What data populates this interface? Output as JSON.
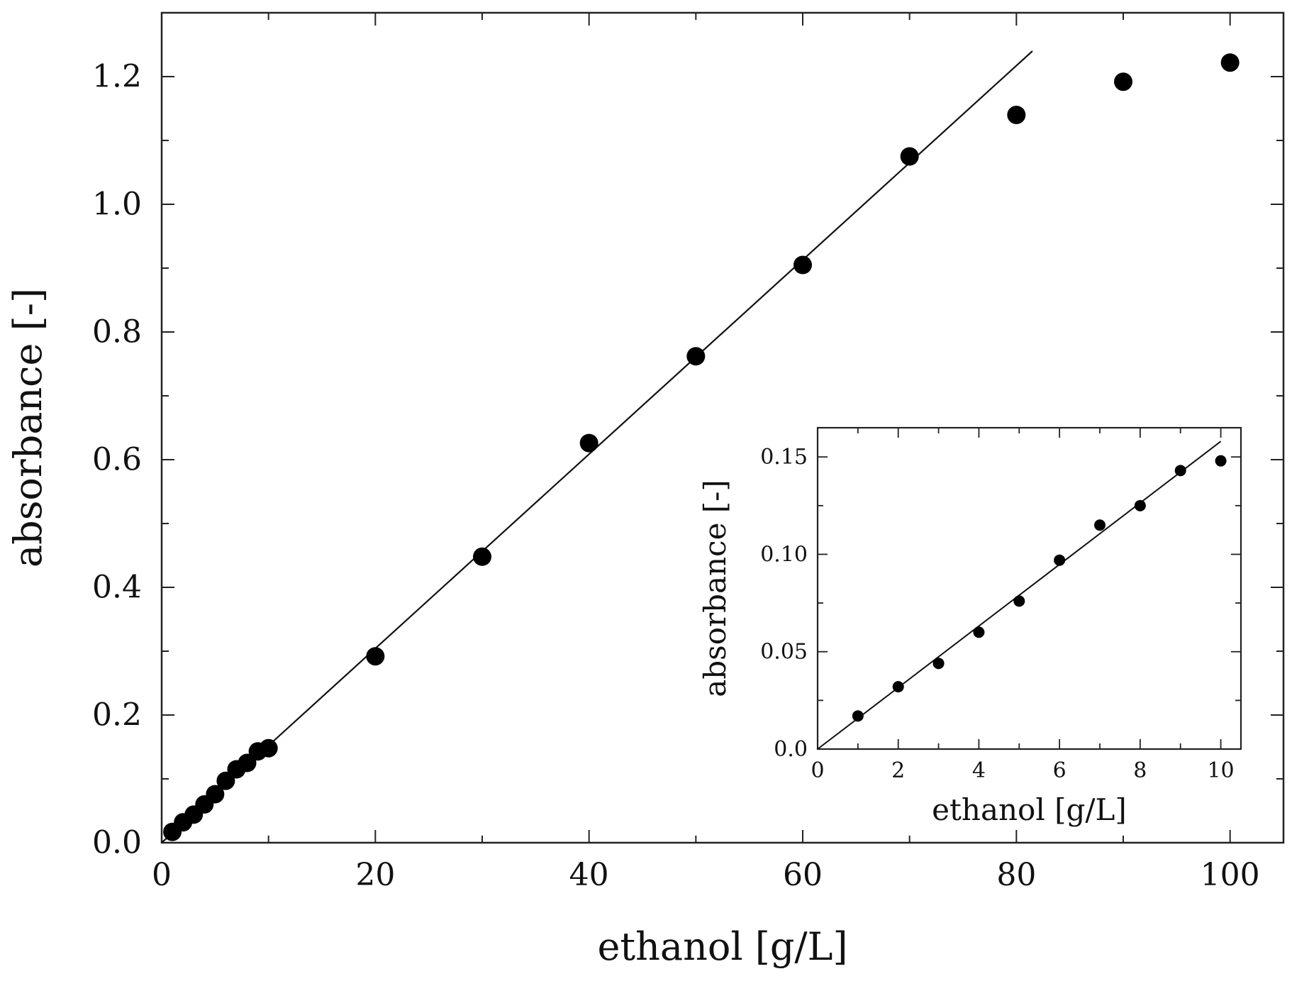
{
  "chart_data": [
    {
      "id": "main",
      "type": "scatter",
      "xlabel": "ethanol [g/L]",
      "ylabel": "absorbance [-]",
      "xlim": [
        0,
        105
      ],
      "ylim": [
        0,
        1.3
      ],
      "xticks": [
        0,
        20,
        40,
        60,
        80,
        100
      ],
      "yticks": [
        0.0,
        0.2,
        0.4,
        0.6,
        0.8,
        1.0,
        1.2
      ],
      "xtick_labels": [
        "0",
        "20",
        "40",
        "60",
        "80",
        "100"
      ],
      "ytick_labels": [
        "0.0",
        "0.2",
        "0.4",
        "0.6",
        "0.8",
        "1.0",
        "1.2"
      ],
      "grid": false,
      "series": [
        {
          "points": [
            [
              1,
              0.017
            ],
            [
              2,
              0.032
            ],
            [
              3,
              0.044
            ],
            [
              4,
              0.06
            ],
            [
              5,
              0.076
            ],
            [
              6,
              0.097
            ],
            [
              7,
              0.115
            ],
            [
              8,
              0.125
            ],
            [
              9,
              0.143
            ],
            [
              10,
              0.148
            ],
            [
              20,
              0.292
            ],
            [
              30,
              0.448
            ],
            [
              40,
              0.626
            ],
            [
              50,
              0.762
            ],
            [
              60,
              0.905
            ],
            [
              70,
              1.075
            ],
            [
              80,
              1.14
            ],
            [
              90,
              1.192
            ],
            [
              100,
              1.222
            ]
          ]
        }
      ],
      "fit_line": {
        "x": [
          0,
          81.5
        ],
        "y": [
          0,
          1.24
        ]
      }
    },
    {
      "id": "inset",
      "type": "scatter",
      "xlabel": "ethanol [g/L]",
      "ylabel": "absorbance [-]",
      "xlim": [
        0,
        10.5
      ],
      "ylim": [
        0,
        0.165
      ],
      "xticks": [
        0,
        2,
        4,
        6,
        8,
        10
      ],
      "yticks": [
        0.0,
        0.05,
        0.1,
        0.15
      ],
      "xtick_labels": [
        "0",
        "2",
        "4",
        "6",
        "8",
        "10"
      ],
      "ytick_labels": [
        "0.0",
        "0.05",
        "0.10",
        "0.15"
      ],
      "grid": false,
      "series": [
        {
          "points": [
            [
              1,
              0.017
            ],
            [
              2,
              0.032
            ],
            [
              3,
              0.044
            ],
            [
              4,
              0.06
            ],
            [
              5,
              0.076
            ],
            [
              6,
              0.097
            ],
            [
              7,
              0.115
            ],
            [
              8,
              0.125
            ],
            [
              9,
              0.143
            ],
            [
              10,
              0.148
            ]
          ]
        }
      ],
      "fit_line": {
        "x": [
          0,
          10
        ],
        "y": [
          0,
          0.158
        ]
      }
    }
  ]
}
